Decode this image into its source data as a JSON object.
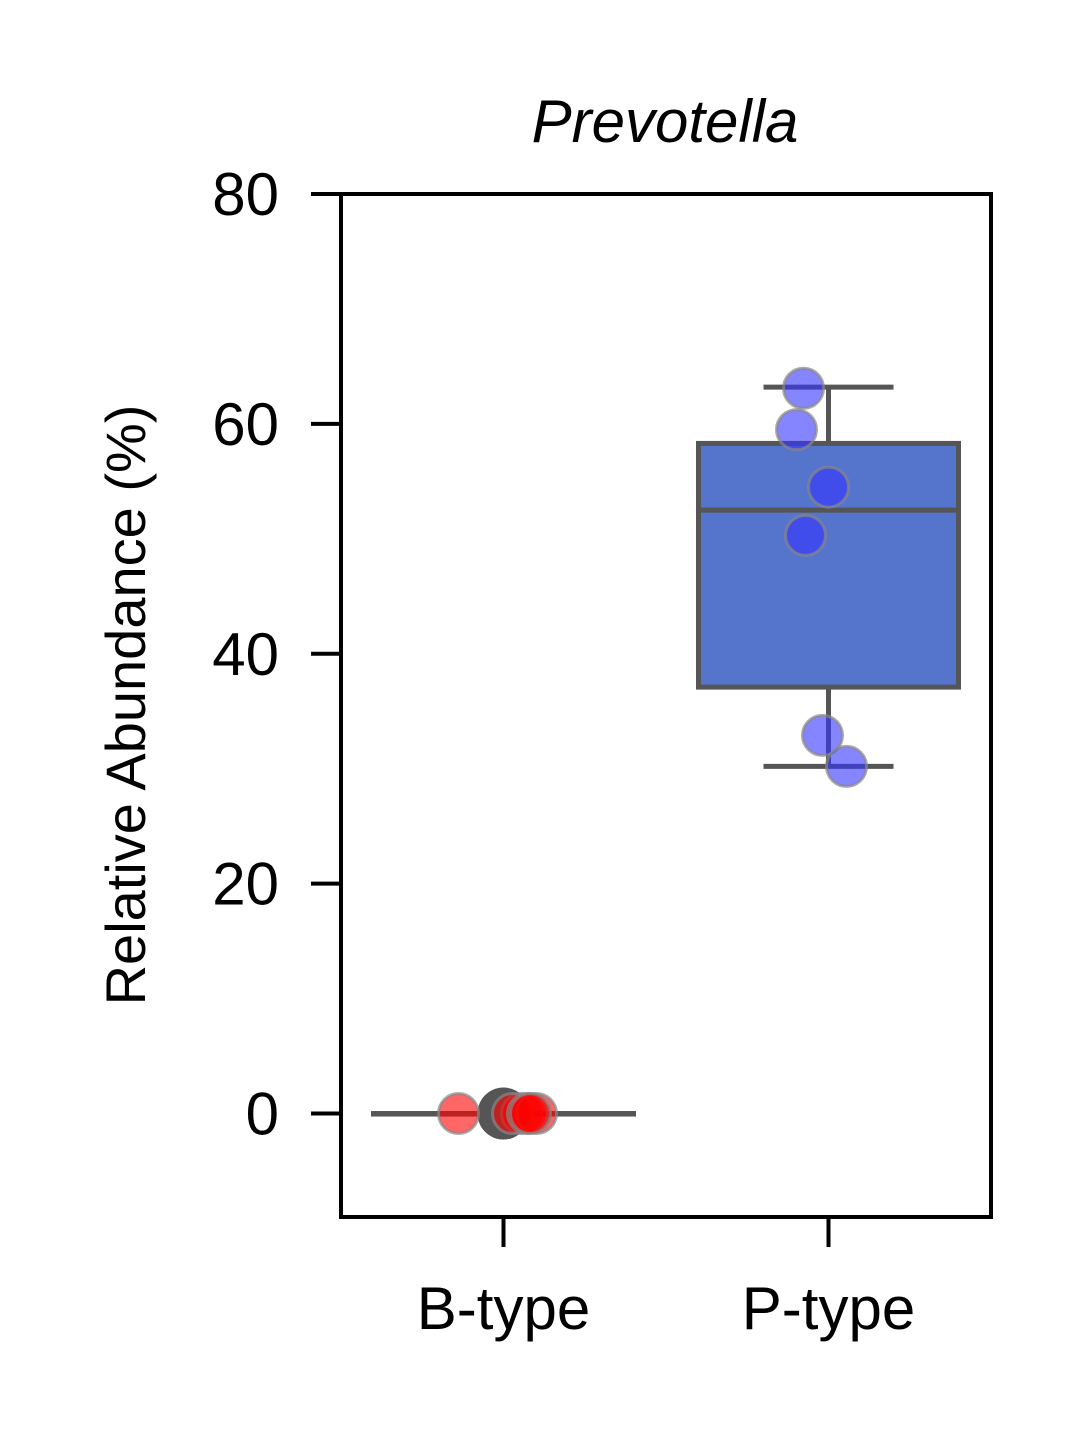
{
  "chart_data": {
    "type": "box",
    "title": "Prevotella",
    "xlabel": "",
    "ylabel": "Relative Abundance (%)",
    "ylim": [
      -9,
      80
    ],
    "yticks": [
      0,
      20,
      40,
      60,
      80
    ],
    "categories": [
      "B-type",
      "P-type"
    ],
    "grid": false,
    "groups": [
      {
        "name": "B-type",
        "color": "#ff0000",
        "box": {
          "min": 0,
          "q1": 0,
          "median": 0,
          "q3": 0,
          "max": 0
        },
        "points": [
          0,
          0,
          0,
          0,
          0,
          0
        ]
      },
      {
        "name": "P-type",
        "color": "#5574cc",
        "point_color": "#3333ff",
        "box": {
          "min": 30.2,
          "q1": 37.1,
          "median": 52.5,
          "q3": 58.3,
          "max": 63.2
        },
        "points": [
          63.1,
          59.5,
          54.5,
          50.3,
          32.9,
          30.2
        ]
      }
    ]
  }
}
